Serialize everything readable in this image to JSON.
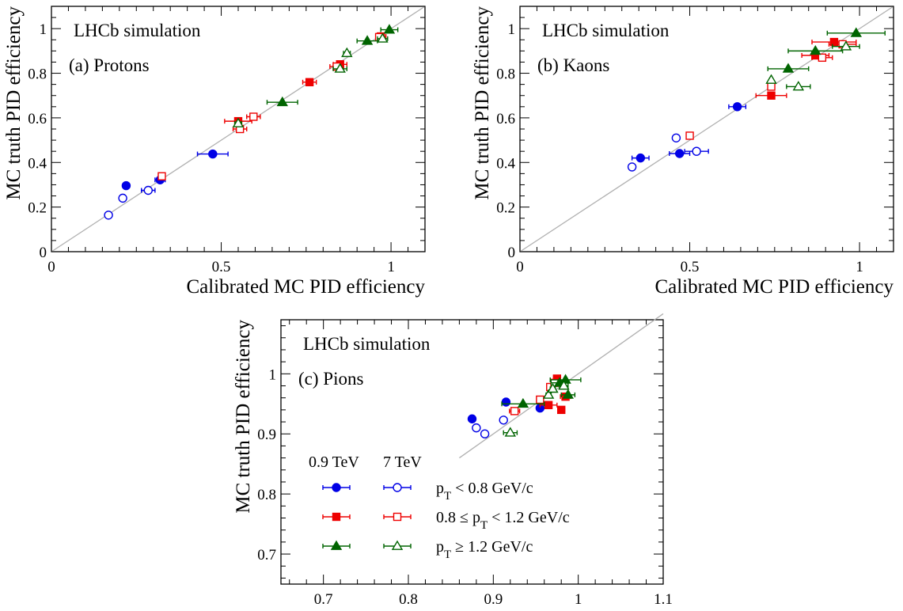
{
  "chart_data": [
    {
      "type": "scatter",
      "panel_label": "(a) Protons",
      "annotation": "LHCb simulation",
      "xlabel": "Calibrated MC PID efficiency",
      "ylabel": "MC truth PID efficiency",
      "xlim": [
        0,
        1.1
      ],
      "ylim": [
        0,
        1.1
      ],
      "x_ticks": [
        "0",
        "0.5",
        "1"
      ],
      "y_ticks": [
        "0",
        "0.2",
        "0.4",
        "0.6",
        "0.8",
        "1"
      ],
      "diagonal": true,
      "series": [
        {
          "name": "0.9 TeV, pT < 0.8 GeV/c",
          "marker": "circle-filled",
          "color": "#0000e6",
          "points": [
            [
              0.22,
              0.296,
              0.005
            ],
            [
              0.32,
              0.322,
              0.015
            ],
            [
              0.475,
              0.438,
              0.045
            ]
          ]
        },
        {
          "name": "7 TeV, pT < 0.8 GeV/c",
          "marker": "circle-open",
          "color": "#0000e6",
          "points": [
            [
              0.168,
              0.164,
              0.005
            ],
            [
              0.21,
              0.24,
              0.005
            ],
            [
              0.285,
              0.275,
              0.02
            ]
          ]
        },
        {
          "name": "0.9 TeV, 0.8 ≤ pT < 1.2 GeV/c",
          "marker": "square-filled",
          "color": "#ee0000",
          "points": [
            [
              0.55,
              0.585,
              0.04
            ],
            [
              0.76,
              0.76,
              0.02
            ],
            [
              0.85,
              0.84,
              0.02
            ],
            [
              0.97,
              0.965,
              0.015
            ]
          ]
        },
        {
          "name": "7 TeV, 0.8 ≤ pT < 1.2 GeV/c",
          "marker": "square-open",
          "color": "#ee0000",
          "points": [
            [
              0.325,
              0.338,
              0.01
            ],
            [
              0.555,
              0.55,
              0.02
            ],
            [
              0.595,
              0.605,
              0.02
            ],
            [
              0.84,
              0.83,
              0.02
            ],
            [
              0.965,
              0.962,
              0.01
            ]
          ]
        },
        {
          "name": "0.9 TeV, pT ≥ 1.2 GeV/c",
          "marker": "triangle-filled",
          "color": "#006400",
          "points": [
            [
              0.68,
              0.67,
              0.045
            ],
            [
              0.93,
              0.945,
              0.03
            ],
            [
              0.995,
              0.995,
              0.025
            ]
          ]
        },
        {
          "name": "7 TeV, pT ≥ 1.2 GeV/c",
          "marker": "triangle-open",
          "color": "#006400",
          "points": [
            [
              0.55,
              0.575,
              0.01
            ],
            [
              0.85,
              0.82,
              0.02
            ],
            [
              0.87,
              0.89,
              0.01
            ],
            [
              0.975,
              0.955,
              0.015
            ]
          ]
        }
      ]
    },
    {
      "type": "scatter",
      "panel_label": "(b) Kaons",
      "annotation": "LHCb simulation",
      "xlabel": "Calibrated MC PID efficiency",
      "ylabel": "MC truth PID efficiency",
      "xlim": [
        0,
        1.1
      ],
      "ylim": [
        0,
        1.1
      ],
      "x_ticks": [
        "0",
        "0.5",
        "1"
      ],
      "y_ticks": [
        "0",
        "0.2",
        "0.4",
        "0.6",
        "0.8",
        "1"
      ],
      "diagonal": true,
      "series": [
        {
          "name": "0.9 TeV, pT < 0.8 GeV/c",
          "marker": "circle-filled",
          "color": "#0000e6",
          "points": [
            [
              0.355,
              0.42,
              0.025
            ],
            [
              0.47,
              0.44,
              0.03
            ],
            [
              0.64,
              0.65,
              0.025
            ]
          ]
        },
        {
          "name": "7 TeV, pT < 0.8 GeV/c",
          "marker": "circle-open",
          "color": "#0000e6",
          "points": [
            [
              0.33,
              0.38,
              0.005
            ],
            [
              0.46,
              0.51,
              0.005
            ],
            [
              0.52,
              0.45,
              0.035
            ]
          ]
        },
        {
          "name": "0.9 TeV, 0.8 ≤ pT < 1.2 GeV/c",
          "marker": "square-filled",
          "color": "#ee0000",
          "points": [
            [
              0.74,
              0.7,
              0.045
            ],
            [
              0.87,
              0.88,
              0.04
            ],
            [
              0.925,
              0.94,
              0.065
            ]
          ]
        },
        {
          "name": "7 TeV, 0.8 ≤ pT < 1.2 GeV/c",
          "marker": "square-open",
          "color": "#ee0000",
          "points": [
            [
              0.5,
              0.52,
              0.005
            ],
            [
              0.74,
              0.74,
              0.01
            ],
            [
              0.89,
              0.87,
              0.03
            ],
            [
              0.95,
              0.93,
              0.04
            ]
          ]
        },
        {
          "name": "0.9 TeV, pT ≥ 1.2 GeV/c",
          "marker": "triangle-filled",
          "color": "#006400",
          "points": [
            [
              0.79,
              0.82,
              0.06
            ],
            [
              0.87,
              0.9,
              0.08
            ],
            [
              0.99,
              0.98,
              0.085
            ]
          ]
        },
        {
          "name": "7 TeV, pT ≥ 1.2 GeV/c",
          "marker": "triangle-open",
          "color": "#006400",
          "points": [
            [
              0.74,
              0.77,
              0.005
            ],
            [
              0.82,
              0.74,
              0.035
            ],
            [
              0.96,
              0.92,
              0.04
            ]
          ]
        }
      ]
    },
    {
      "type": "scatter",
      "panel_label": "(c) Pions",
      "annotation": "LHCb simulation",
      "xlabel": "Calibrated MC PID efficiency",
      "ylabel": "MC truth PID efficiency",
      "xlim": [
        0.65,
        1.1
      ],
      "ylim": [
        0.65,
        1.09
      ],
      "x_ticks": [
        "0.7",
        "0.8",
        "0.9",
        "1",
        "1.1"
      ],
      "y_ticks": [
        "0.7",
        "0.8",
        "0.9",
        "1"
      ],
      "diagonal": true,
      "diagonal_from": 0.86,
      "series": [
        {
          "name": "0.9 TeV, pT < 0.8 GeV/c",
          "marker": "circle-filled",
          "color": "#0000e6",
          "points": [
            [
              0.875,
              0.925,
              0.003
            ],
            [
              0.915,
              0.953,
              0.003
            ],
            [
              0.955,
              0.943,
              0.003
            ]
          ]
        },
        {
          "name": "7 TeV, pT < 0.8 GeV/c",
          "marker": "circle-open",
          "color": "#0000e6",
          "points": [
            [
              0.88,
              0.91,
              0.002
            ],
            [
              0.89,
              0.9,
              0.002
            ],
            [
              0.912,
              0.923,
              0.002
            ]
          ]
        },
        {
          "name": "0.9 TeV, 0.8 ≤ pT < 1.2 GeV/c",
          "marker": "square-filled",
          "color": "#ee0000",
          "points": [
            [
              0.965,
              0.948,
              0.01
            ],
            [
              0.975,
              0.992,
              0.004
            ],
            [
              0.98,
              0.94,
              0.004
            ],
            [
              0.985,
              0.962,
              0.006
            ]
          ]
        },
        {
          "name": "7 TeV, 0.8 ≤ pT < 1.2 GeV/c",
          "marker": "square-open",
          "color": "#ee0000",
          "points": [
            [
              0.925,
              0.938,
              0.006
            ],
            [
              0.955,
              0.957,
              0.004
            ],
            [
              0.967,
              0.978,
              0.004
            ],
            [
              0.972,
              0.985,
              0.003
            ]
          ]
        },
        {
          "name": "0.9 TeV, pT ≥ 1.2 GeV/c",
          "marker": "triangle-filled",
          "color": "#006400",
          "points": [
            [
              0.935,
              0.95,
              0.025
            ],
            [
              0.978,
              0.985,
              0.01
            ],
            [
              0.985,
              0.99,
              0.018
            ],
            [
              0.988,
              0.965,
              0.008
            ]
          ]
        },
        {
          "name": "7 TeV, pT ≥ 1.2 GeV/c",
          "marker": "triangle-open",
          "color": "#006400",
          "points": [
            [
              0.92,
              0.902,
              0.008
            ],
            [
              0.965,
              0.965,
              0.003
            ],
            [
              0.97,
              0.975,
              0.003
            ],
            [
              0.983,
              0.98,
              0.005
            ]
          ]
        }
      ]
    }
  ],
  "legend": {
    "header_left": "0.9 TeV",
    "header_right": "7 TeV",
    "rows": [
      {
        "label": "p",
        "sub": "T",
        "rest": " < 0.8 GeV/c"
      },
      {
        "label": "0.8 ≤ p",
        "sub": "T",
        "rest": " < 1.2 GeV/c"
      },
      {
        "label": "p",
        "sub": "T",
        "rest": " ≥ 1.2 GeV/c"
      }
    ]
  }
}
